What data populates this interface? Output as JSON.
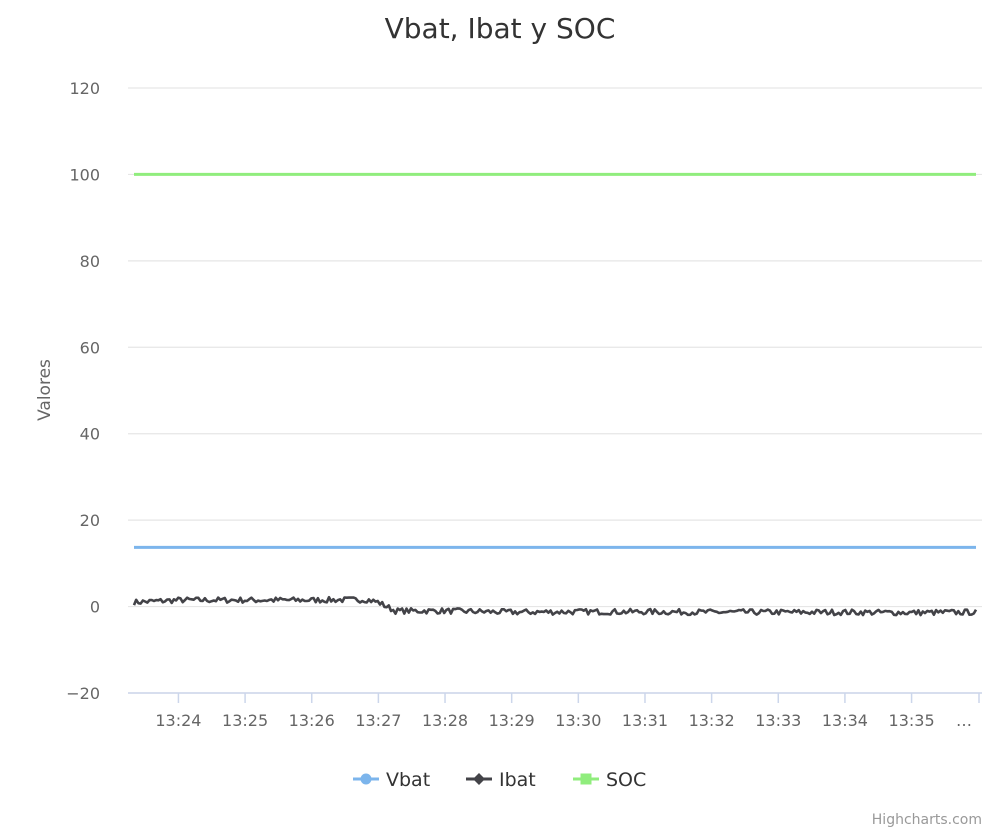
{
  "chart_data": {
    "type": "line",
    "title": "Vbat, Ibat y SOC",
    "ylabel": "Valores",
    "ylim": [
      -20,
      120
    ],
    "yticks": [
      -20,
      0,
      20,
      40,
      60,
      80,
      100,
      120
    ],
    "xlim": [
      "13:23:20",
      "13:35:58"
    ],
    "xticks": [
      "13:24",
      "13:25",
      "13:26",
      "13:27",
      "13:28",
      "13:29",
      "13:30",
      "13:31",
      "13:32",
      "13:33",
      "13:34",
      "13:35",
      "…"
    ],
    "grid": true,
    "legend_position": "bottom",
    "series": [
      {
        "name": "Vbat",
        "color": "#7cb5ec",
        "marker": "circle",
        "x": [
          "13:23:20",
          "13:35:58"
        ],
        "y": [
          13.7,
          13.7
        ]
      },
      {
        "name": "Ibat",
        "color": "#434348",
        "marker": "diamond",
        "x": [
          "13:23:20",
          "13:24:00",
          "13:25:00",
          "13:26:00",
          "13:26:50",
          "13:27:00",
          "13:27:15",
          "13:28:00",
          "13:29:00",
          "13:30:00",
          "13:31:00",
          "13:32:00",
          "13:33:00",
          "13:34:00",
          "13:35:00",
          "13:35:58"
        ],
        "y": [
          1.0,
          1.5,
          1.5,
          1.5,
          1.6,
          1.0,
          -1.0,
          -1.0,
          -1.3,
          -1.2,
          -1.2,
          -1.3,
          -1.3,
          -1.3,
          -1.4,
          -1.3
        ]
      },
      {
        "name": "SOC",
        "color": "#90ed7d",
        "marker": "square",
        "x": [
          "13:23:20",
          "13:35:58"
        ],
        "y": [
          100,
          100
        ]
      }
    ]
  },
  "credits": "Highcharts.com"
}
